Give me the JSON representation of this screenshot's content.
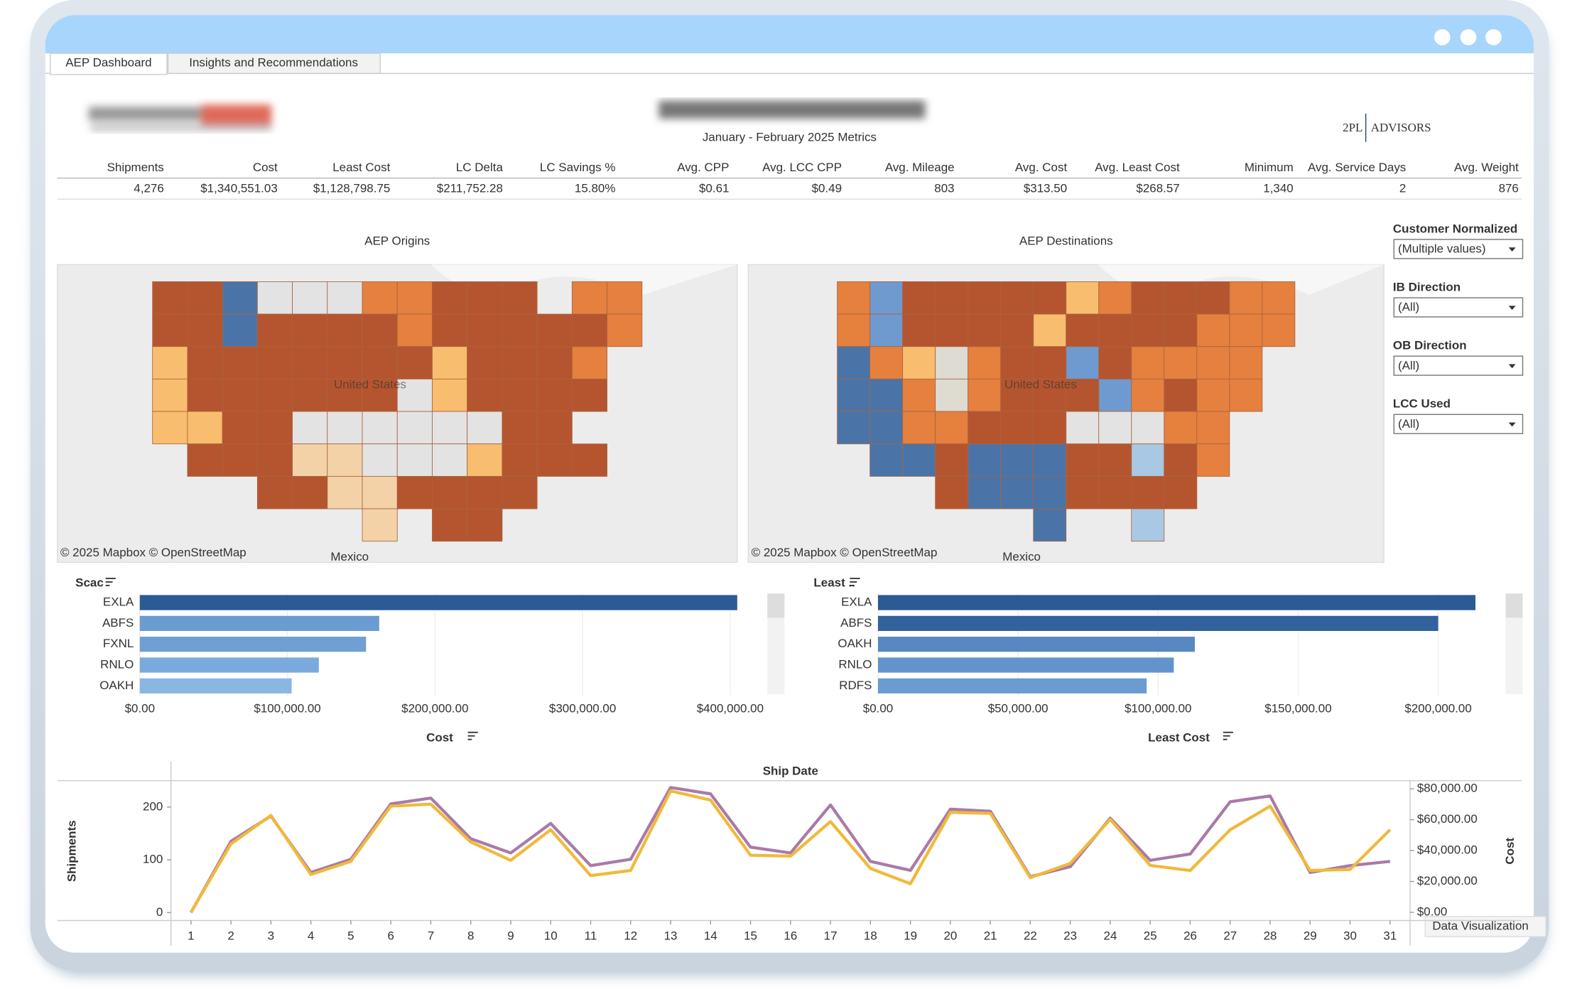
{
  "tabs": [
    "AEP Dashboard",
    "Insights and Recommendations"
  ],
  "header": {
    "subtitle": "January - February 2025 Metrics",
    "brand_left": "2PL",
    "brand_right": "ADVISORS"
  },
  "kpis": {
    "labels": [
      "Shipments",
      "Cost",
      "Least Cost",
      "LC Delta",
      "LC Savings %",
      "Avg. CPP",
      "Avg. LCC CPP",
      "Avg. Mileage",
      "Avg. Cost",
      "Avg. Least Cost",
      "Minimum",
      "Avg. Service Days",
      "Avg. Weight"
    ],
    "values": [
      "4,276",
      "$1,340,551.03",
      "$1,128,798.75",
      "$211,752.28",
      "15.80%",
      "$0.61",
      "$0.49",
      "803",
      "$313.50",
      "$268.57",
      "1,340",
      "2",
      "876"
    ]
  },
  "maps": [
    {
      "title": "AEP Origins",
      "attribution": "© 2025 Mapbox  © OpenStreetMap",
      "labels": [
        "United States",
        "Mexico"
      ]
    },
    {
      "title": "AEP Destinations",
      "attribution": "© 2025 Mapbox  © OpenStreetMap",
      "labels": [
        "United States",
        "Mexico"
      ]
    }
  ],
  "filters": [
    {
      "label": "Customer Normalized",
      "value": "(Multiple values)"
    },
    {
      "label": "IB Direction",
      "value": "(All)"
    },
    {
      "label": "OB Direction",
      "value": "(All)"
    },
    {
      "label": "LCC Used",
      "value": "(All)"
    }
  ],
  "chart_data": [
    {
      "type": "bar",
      "row_header": "Scac",
      "axis_title": "Cost",
      "categories": [
        "EXLA",
        "ABFS",
        "FXNL",
        "RNLO",
        "OAKH"
      ],
      "values": [
        404800,
        162200,
        153300,
        121300,
        102900
      ],
      "colors": [
        "#2c5a94",
        "#6a9bd1",
        "#6f9fd3",
        "#7aaadb",
        "#8ab6e2"
      ],
      "xlim": [
        0,
        420000
      ],
      "xticks": [
        {
          "value": 0,
          "label": "$0.00"
        },
        {
          "value": 100000,
          "label": "$100,000.00"
        },
        {
          "value": 200000,
          "label": "$200,000.00"
        },
        {
          "value": 300000,
          "label": "$300,000.00"
        },
        {
          "value": 400000,
          "label": "$400,000.00"
        }
      ]
    },
    {
      "type": "bar",
      "row_header": "Least ..",
      "axis_title": "Least Cost",
      "categories": [
        "EXLA",
        "ABFS",
        "OAKH",
        "RNLO",
        "RDFS"
      ],
      "values": [
        213300,
        200000,
        113100,
        105600,
        95900
      ],
      "colors": [
        "#2c5a94",
        "#33619b",
        "#5888c2",
        "#6294cb",
        "#6a9bd1"
      ],
      "xlim": [
        0,
        222000
      ],
      "xticks": [
        {
          "value": 0,
          "label": "$0.00"
        },
        {
          "value": 50000,
          "label": "$50,000.00"
        },
        {
          "value": 100000,
          "label": "$100,000.00"
        },
        {
          "value": 150000,
          "label": "$150,000.00"
        },
        {
          "value": 200000,
          "label": "$200,000.00"
        }
      ]
    },
    {
      "type": "line",
      "title": "Ship Date",
      "x": [
        1,
        2,
        3,
        4,
        5,
        6,
        7,
        8,
        9,
        10,
        11,
        12,
        13,
        14,
        15,
        16,
        17,
        18,
        19,
        20,
        21,
        22,
        23,
        24,
        25,
        26,
        27,
        28,
        29,
        30,
        31
      ],
      "xlim": [
        0.5,
        31.5
      ],
      "xticks": [
        1,
        2,
        3,
        4,
        5,
        6,
        7,
        8,
        9,
        10,
        11,
        12,
        13,
        14,
        15,
        16,
        17,
        18,
        19,
        20,
        21,
        22,
        23,
        24,
        25,
        26,
        27,
        28,
        29,
        30,
        31
      ],
      "ylim": [
        -15,
        250
      ],
      "yticks": [
        0,
        100,
        200
      ],
      "y2lim": [
        -5300,
        85300
      ],
      "y2ticks": [
        {
          "value": 0,
          "label": "$0.00"
        },
        {
          "value": 20000,
          "label": "$20,000.00"
        },
        {
          "value": 40000,
          "label": "$40,000.00"
        },
        {
          "value": 60000,
          "label": "$60,000.00"
        },
        {
          "value": 80000,
          "label": "$80,000.00"
        }
      ],
      "series": [
        {
          "name": "Shipments",
          "color": "#a97aa8",
          "values": [
            0,
            135,
            183,
            76,
            101,
            206,
            217,
            140,
            113,
            169,
            89,
            101,
            237,
            225,
            124,
            113,
            204,
            97,
            80,
            196,
            192,
            68,
            87,
            179,
            99,
            111,
            210,
            221,
            76,
            89,
            97
          ]
        },
        {
          "name": "Cost",
          "color": "#f0b93a",
          "axis": "y2",
          "values": [
            0,
            44300,
            62800,
            24500,
            33000,
            68800,
            70100,
            45600,
            33700,
            53500,
            23800,
            27100,
            78700,
            72700,
            37000,
            36400,
            58800,
            28400,
            18500,
            64800,
            64100,
            22500,
            31700,
            60200,
            30400,
            27100,
            53500,
            68800,
            27100,
            27800,
            53500
          ]
        }
      ]
    }
  ],
  "footer_tag": "Data Visualization"
}
